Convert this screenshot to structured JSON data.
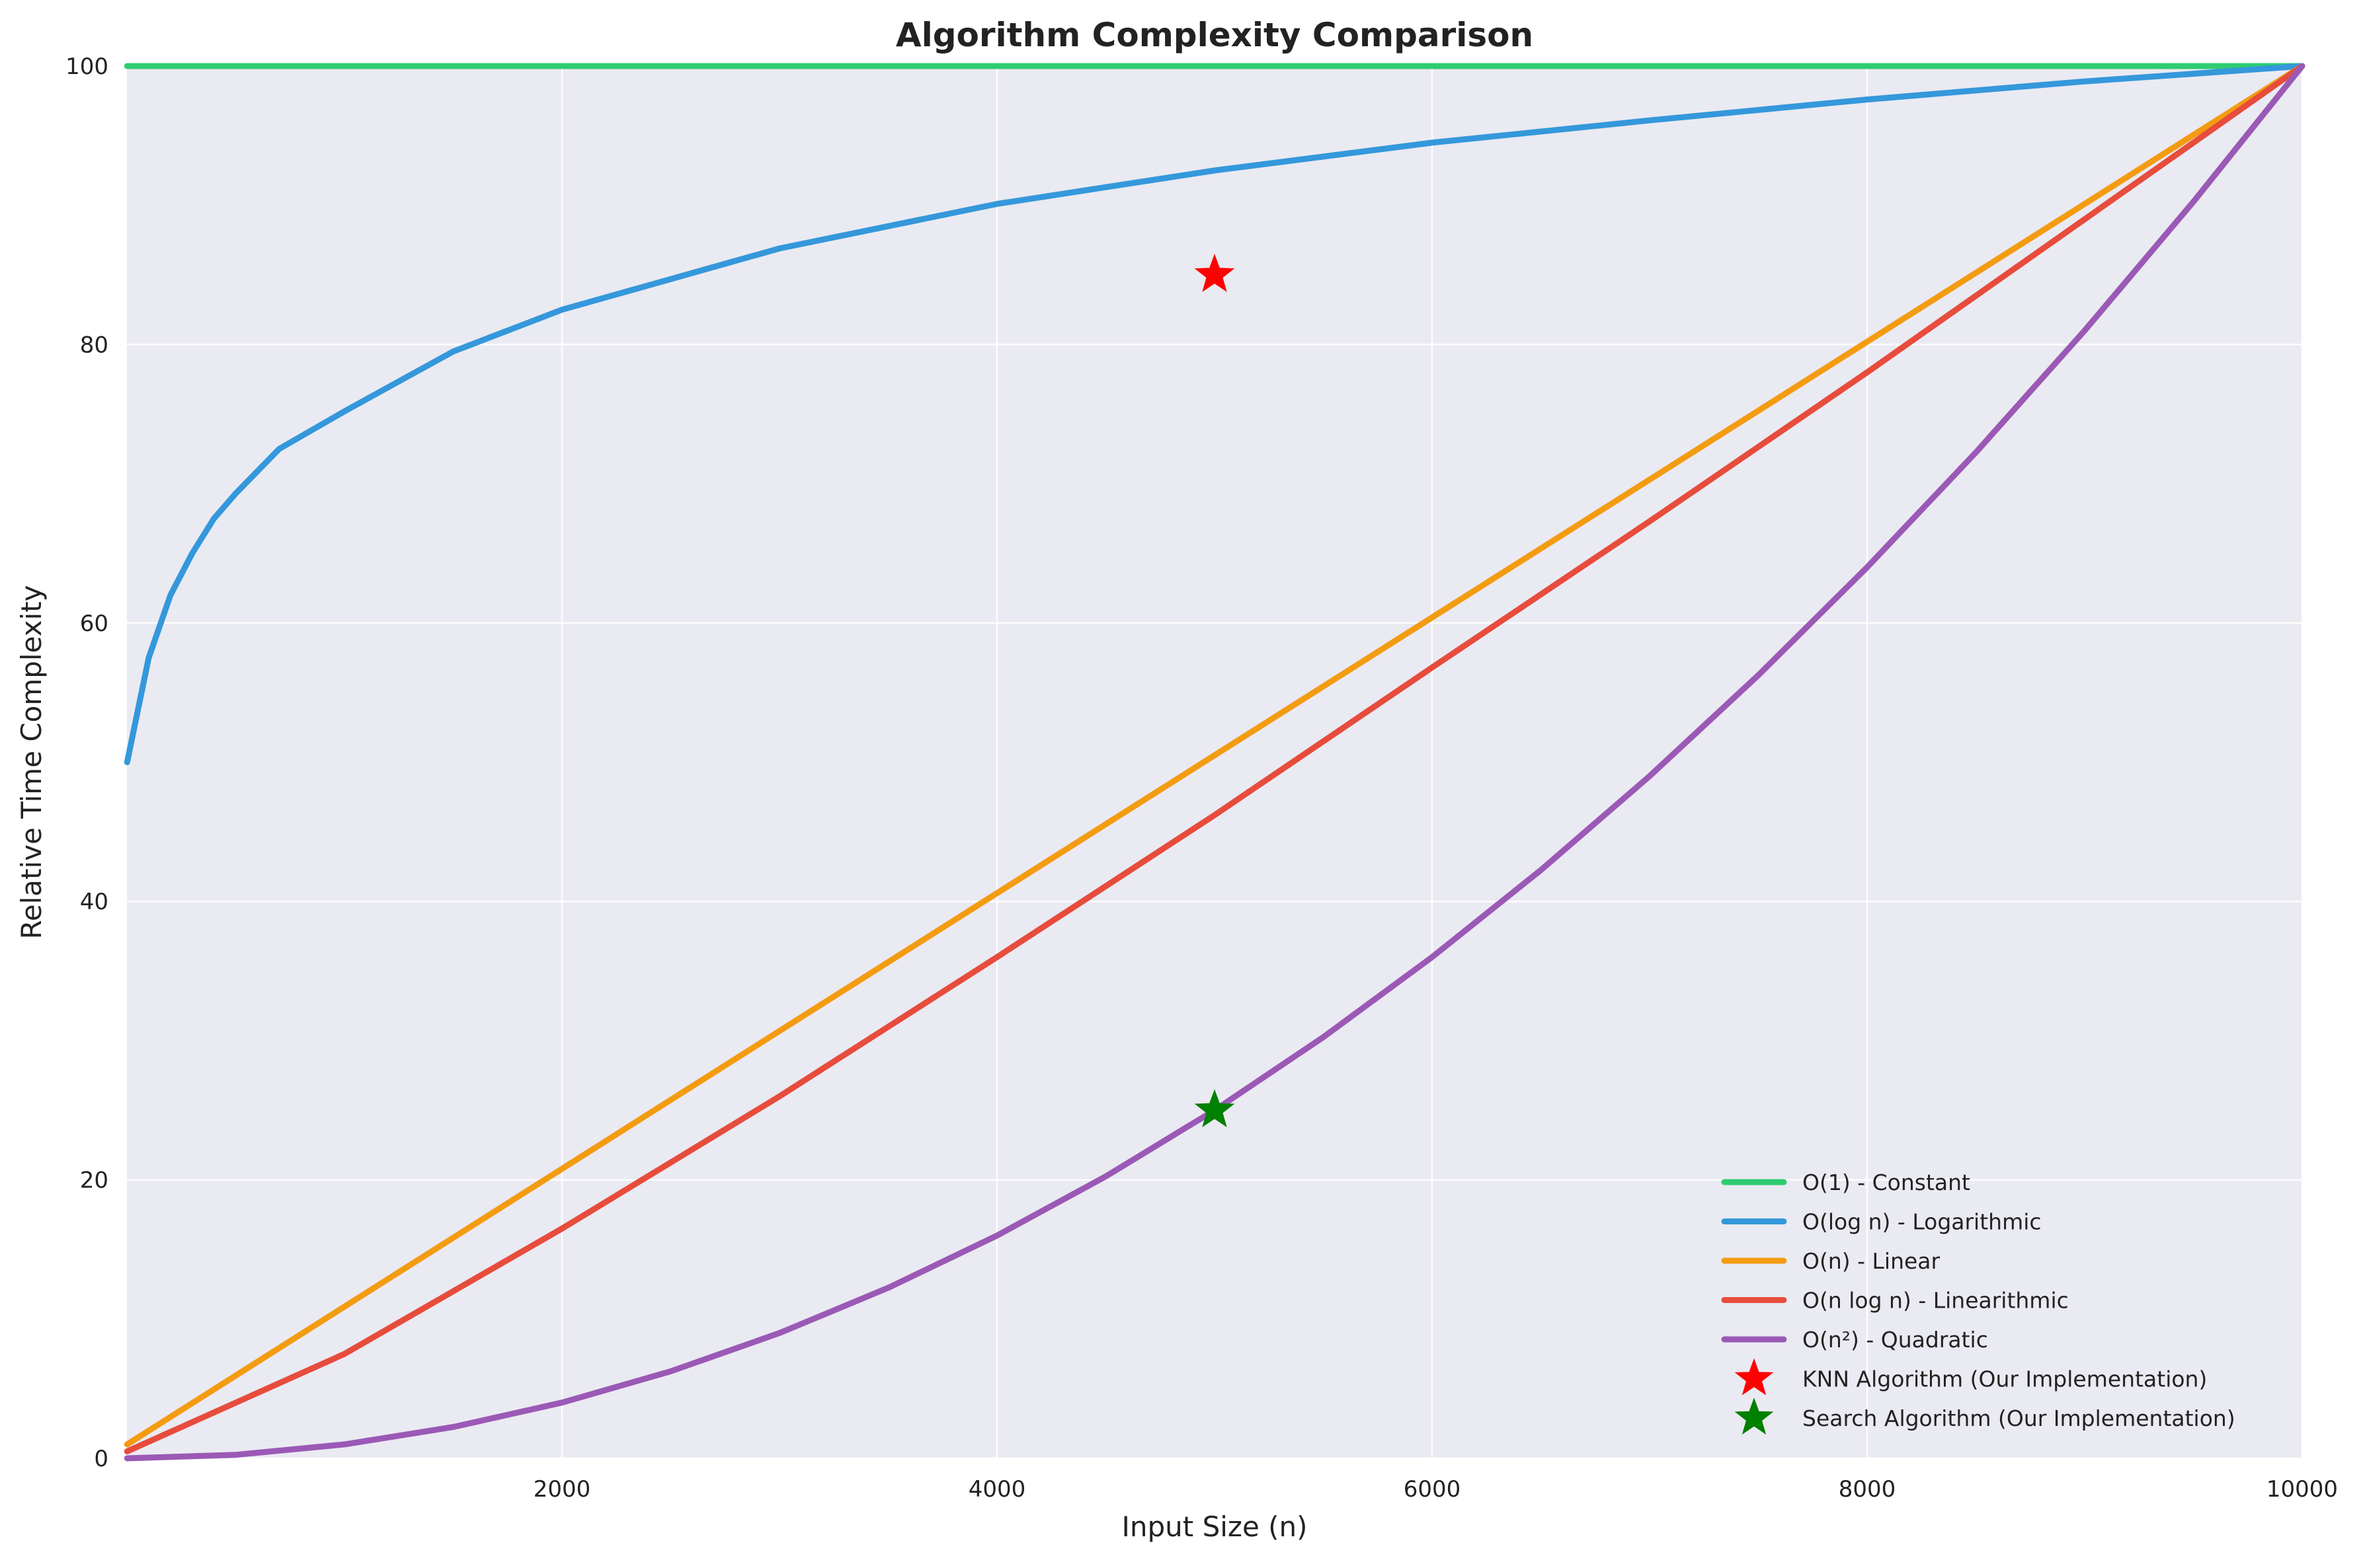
{
  "chart_data": {
    "type": "line",
    "title": "Algorithm Complexity Comparison",
    "xlabel": "Input Size (n)",
    "ylabel": "Relative Time Complexity",
    "xlim": [
      0,
      10000
    ],
    "ylim": [
      0,
      100
    ],
    "xticks": [
      2000,
      4000,
      6000,
      8000,
      10000
    ],
    "yticks": [
      0,
      20,
      40,
      60,
      80,
      100
    ],
    "grid": true,
    "legend_position": "lower-right",
    "background": "#eaeaf2",
    "series": [
      {
        "name": "O(1) - Constant",
        "color": "#2ecc71",
        "x": [
          1,
          10000
        ],
        "y": [
          100,
          100
        ]
      },
      {
        "name": "O(log n) - Logarithmic",
        "color": "#3498db",
        "x": [
          1,
          100,
          200,
          300,
          400,
          500,
          700,
          1000,
          1500,
          2000,
          3000,
          4000,
          5000,
          6000,
          7000,
          8000,
          9000,
          10000
        ],
        "y": [
          50,
          57.5,
          62,
          65,
          67.5,
          69.3,
          72.5,
          75.2,
          79.5,
          82.5,
          86.9,
          90.1,
          92.5,
          94.5,
          96.1,
          97.6,
          98.9,
          100
        ]
      },
      {
        "name": "O(n) - Linear",
        "color": "#f39c12",
        "x": [
          1,
          10000
        ],
        "y": [
          1,
          100
        ]
      },
      {
        "name": "O(n log n) - Linearithmic",
        "color": "#e74c3c",
        "x": [
          1,
          1000,
          2000,
          3000,
          4000,
          5000,
          6000,
          7000,
          8000,
          9000,
          10000
        ],
        "y": [
          0.5,
          7.5,
          16.5,
          26,
          36,
          46.2,
          56.8,
          67.3,
          78,
          89,
          100
        ]
      },
      {
        "name": "O(n²) - Quadratic",
        "color": "#9b59b6",
        "x": [
          1,
          500,
          1000,
          1500,
          2000,
          2500,
          3000,
          3500,
          4000,
          4500,
          5000,
          5500,
          6000,
          6500,
          7000,
          7500,
          8000,
          8500,
          9000,
          9500,
          10000
        ],
        "y": [
          0,
          0.25,
          1,
          2.25,
          4,
          6.25,
          9,
          12.25,
          16,
          20.25,
          25,
          30.25,
          36,
          42.25,
          49,
          56.25,
          64,
          72.25,
          81,
          90.25,
          100
        ]
      }
    ],
    "markers": [
      {
        "name": "KNN Algorithm (Our Implementation)",
        "color": "#ff0000",
        "x": 5000,
        "y": 85,
        "shape": "star"
      },
      {
        "name": "Search Algorithm (Our Implementation)",
        "color": "#008000",
        "x": 5000,
        "y": 25,
        "shape": "star"
      }
    ]
  }
}
